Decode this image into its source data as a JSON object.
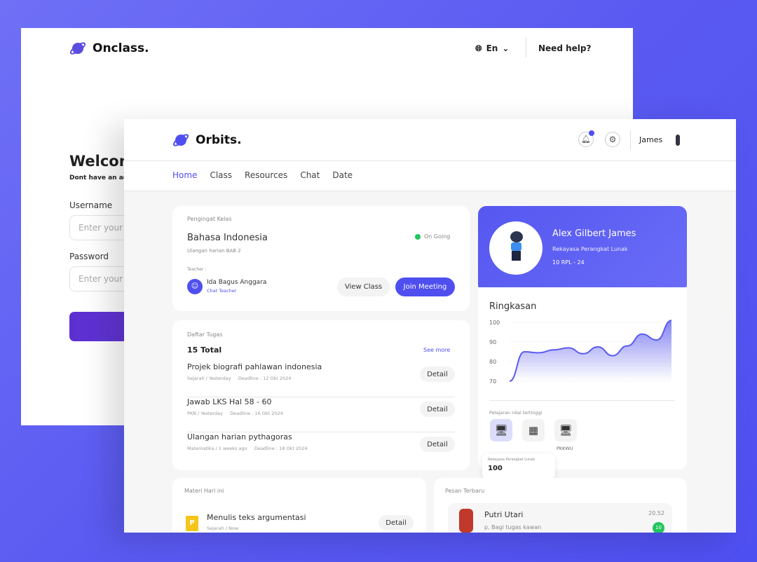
{
  "back_window": {
    "brand": "Onclass.",
    "language": "En",
    "help": "Need help?",
    "welcome": "Welcon",
    "signup_hint": "Dont have an ac",
    "username_label": "Username",
    "username_placeholder": "Enter your",
    "password_label": "Password",
    "password_placeholder": "Enter your"
  },
  "header": {
    "brand": "Orbits.",
    "user": "James",
    "nav": [
      "Home",
      "Class",
      "Resources",
      "Chat",
      "Date"
    ],
    "active_nav": "Home"
  },
  "reminder": {
    "section": "Pengingat Kelas",
    "subject": "Bahasa Indonesia",
    "desc": "Ulangan harian BAB 2",
    "status": "On Going",
    "teacher_label": "Teacher :",
    "teacher": "Ida Bagus Anggara",
    "chat": "Chat Teacher",
    "view": "View Class",
    "join": "Join Meeting"
  },
  "tasks": {
    "section": "Daftar Tugas",
    "total": "15 Total",
    "see_more": "See more",
    "detail": "Detail",
    "items": [
      {
        "title": "Projek biografi pahlawan indonesia",
        "meta": "Sejarah / Yesterday",
        "deadline": "Deadline : 12 Okt 2024"
      },
      {
        "title": "Jawab LKS Hal 58 - 60",
        "meta": "PKN / Yesterday",
        "deadline": "Deadline : 16 Okt 2024"
      },
      {
        "title": "Ulangan harian pythagoras",
        "meta": "Matematika / 1 weeks ago",
        "deadline": "Deadline : 18 Okt 2024"
      }
    ]
  },
  "profile": {
    "name": "Alex Gilbert James",
    "major": "Rekayasa Perangkat Lunak",
    "class": "10 RPL - 24"
  },
  "summary": {
    "title": "Ringkasan",
    "top_label": "Pelajaran nilai tertinggi",
    "subjects": [
      {
        "icon": "monitor-code-icon",
        "active": true
      },
      {
        "icon": "calculator-icon",
        "active": false
      },
      {
        "icon": "monitor-code-icon",
        "active": false,
        "label": "PKKWU"
      }
    ],
    "tooltip_label": "Rekayasa Perangkat Lunak",
    "tooltip_value": "100"
  },
  "chart_data": {
    "type": "area",
    "yticks": [
      100,
      90,
      80,
      70
    ],
    "ylim": [
      70,
      100
    ],
    "values": [
      70,
      85,
      84.5,
      86,
      87,
      84,
      87.5,
      83,
      88,
      94,
      91,
      101
    ],
    "color": "#5b5bf0",
    "grid": true
  },
  "materials": {
    "section": "Materi Hari ini",
    "item": "Menulis teks argumentasi",
    "meta": "Sejarah / Now",
    "detail": "Detail"
  },
  "messages": {
    "section": "Pesan Terbaru",
    "name": "Putri Utari",
    "text": "p, Bagi tugas kawan",
    "time": "20.52",
    "unread": "10"
  },
  "colors": {
    "accent": "#4f4ff0",
    "status": "#22c55e"
  }
}
